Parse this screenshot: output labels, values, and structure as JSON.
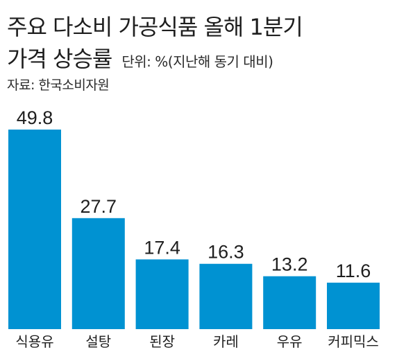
{
  "title_line1": "주요 다소비 가공식품 올해 1분기",
  "title_line2": "가격 상승률",
  "unit_note": "단위: %(지난해 동기 대비)",
  "source": "자료: 한국소비자원",
  "colors": {
    "bar": "#0092d2",
    "text": "#1e1e1e"
  },
  "chart_data": {
    "type": "bar",
    "title": "주요 다소비 가공식품 올해 1분기 가격 상승률",
    "ylabel": "",
    "xlabel": "",
    "unit": "%",
    "categories": [
      "식용유",
      "설탕",
      "된장",
      "카레",
      "우유",
      "커피믹스"
    ],
    "values": [
      49.8,
      27.7,
      17.4,
      16.3,
      13.2,
      11.6
    ],
    "value_labels": [
      "49.8",
      "27.7",
      "17.4",
      "16.3",
      "13.2",
      "11.6"
    ],
    "ylim": [
      0,
      49.8
    ],
    "grid": false,
    "legend": "none"
  }
}
